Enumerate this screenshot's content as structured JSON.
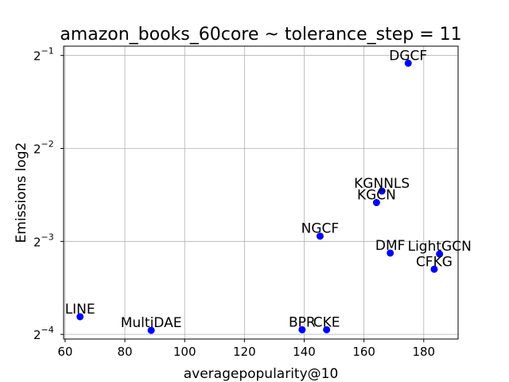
{
  "chart_data": {
    "type": "scatter",
    "title": "amazon_books_60core ~ tolerance_step = 11",
    "xlabel": "averagepopularity@10",
    "ylabel": "Emissions log2",
    "xlim": [
      59.5,
      191.5
    ],
    "ylim_log2": [
      -4.05,
      -0.9
    ],
    "y_scale": "log2",
    "grid": true,
    "marker_color": "#0000ff",
    "x_ticks": [
      60,
      80,
      100,
      120,
      140,
      160,
      180
    ],
    "y_ticks": [
      {
        "exp": -1,
        "label": "2",
        "sup": "−1"
      },
      {
        "exp": -2,
        "label": "2",
        "sup": "−2"
      },
      {
        "exp": -3,
        "label": "2",
        "sup": "−3"
      },
      {
        "exp": -4,
        "label": "2",
        "sup": "−4"
      }
    ],
    "points": [
      {
        "name": "DGCF",
        "x": 174.8,
        "y": 0.472
      },
      {
        "name": "KGNNLS",
        "x": 166.0,
        "y": 0.182
      },
      {
        "name": "KGCN",
        "x": 164.2,
        "y": 0.167
      },
      {
        "name": "NGCF",
        "x": 145.3,
        "y": 0.13
      },
      {
        "name": "DMF",
        "x": 168.8,
        "y": 0.1146
      },
      {
        "name": "LightGCN",
        "x": 185.3,
        "y": 0.1138
      },
      {
        "name": "CFKG",
        "x": 183.5,
        "y": 0.1016
      },
      {
        "name": "LINE",
        "x": 65.0,
        "y": 0.0713
      },
      {
        "name": "MultiDAE",
        "x": 88.8,
        "y": 0.0644
      },
      {
        "name": "BPR",
        "x": 139.3,
        "y": 0.0647
      },
      {
        "name": "CKE",
        "x": 147.5,
        "y": 0.0647
      }
    ]
  }
}
